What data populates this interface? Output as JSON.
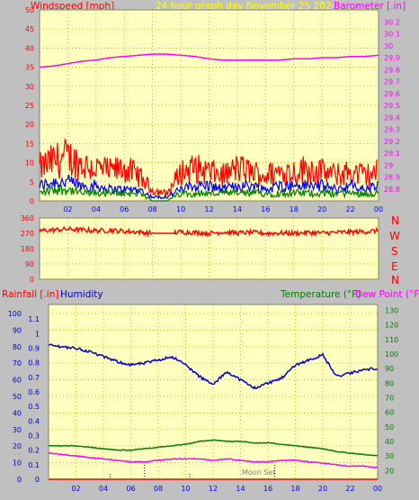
{
  "header": {
    "windspeed_label": "Windspeed [mph]",
    "center_title": "24 hour graph day   November 25 2024",
    "barometer_label": "Barometer [.in]"
  },
  "direction_labels": [
    "N",
    "W",
    "S",
    "E",
    "N"
  ],
  "lower_header": {
    "rainfall_label": "Rainfall [.in]",
    "humidity_label": "Humidity",
    "temperature_label": "Temperature (°F)",
    "dewpoint_label": "Dew Point (°F)"
  },
  "moon_label": "Moon Set",
  "colors": {
    "plot_bg": "#ffffc0",
    "frame_bg": "#c0c0c0",
    "wind": "#ff0000",
    "gust": "#0000ff",
    "avg": "#008000",
    "barometer": "#ff00ff",
    "humidity": "#0000cc",
    "temperature": "#008000",
    "dewpoint": "#ff00ff",
    "rain": "#ff0000",
    "title": "#ffff00",
    "grid": "#a0a000"
  },
  "chart_data": [
    {
      "type": "line",
      "title": "24 hour graph day   November 25 2024",
      "x_ticks": [
        "02",
        "04",
        "06",
        "08",
        "10",
        "12",
        "14",
        "16",
        "18",
        "20",
        "22",
        "00"
      ],
      "y_left_ticks": [
        0,
        5,
        10,
        15,
        20,
        25,
        30,
        35,
        40,
        45,
        50
      ],
      "y_left_label": "Windspeed [mph]",
      "y_left_range": [
        0,
        50
      ],
      "y_right_label": "Barometer [.in]",
      "y_right_range": [
        28.7,
        30.3
      ],
      "y_right_ticks": [
        "28.8",
        "28.9",
        "29",
        "29.1",
        "29.2",
        "29.3",
        "29.4",
        "29.5",
        "29.6",
        "29.7",
        "29.8",
        "29.9",
        "30",
        "30.1",
        "30.2"
      ],
      "series": [
        {
          "name": "Barometer",
          "axis": "right",
          "x": [
            0,
            1,
            2,
            3,
            4,
            5,
            6,
            7,
            8,
            9,
            10,
            11,
            12,
            13,
            14,
            15,
            16,
            17,
            18,
            19,
            20,
            21,
            22,
            23,
            24
          ],
          "values": [
            29.82,
            29.83,
            29.85,
            29.87,
            29.88,
            29.9,
            29.91,
            29.92,
            29.93,
            29.93,
            29.92,
            29.91,
            29.89,
            29.88,
            29.88,
            29.88,
            29.88,
            29.88,
            29.89,
            29.89,
            29.9,
            29.9,
            29.91,
            29.91,
            29.92
          ]
        },
        {
          "name": "Wind",
          "axis": "left",
          "x": [
            0,
            1,
            2,
            3,
            4,
            5,
            6,
            7,
            8,
            9,
            10,
            11,
            12,
            13,
            14,
            15,
            16,
            17,
            18,
            19,
            20,
            21,
            22,
            23,
            24
          ],
          "values": [
            9,
            11,
            12,
            10,
            9,
            8,
            9,
            7,
            3,
            2,
            8,
            9,
            8,
            7,
            9,
            8,
            7,
            8,
            8,
            9,
            8,
            7,
            8,
            7,
            8
          ]
        },
        {
          "name": "Gust",
          "axis": "left",
          "x": [
            0,
            1,
            2,
            3,
            4,
            5,
            6,
            7,
            8,
            9,
            10,
            11,
            12,
            13,
            14,
            15,
            16,
            17,
            18,
            19,
            20,
            21,
            22,
            23,
            24
          ],
          "values": [
            4,
            5,
            5,
            4,
            4,
            3,
            3,
            3,
            1,
            1,
            3,
            4,
            4,
            3,
            4,
            4,
            3,
            4,
            4,
            4,
            4,
            3,
            4,
            3,
            4
          ]
        },
        {
          "name": "Average",
          "axis": "left",
          "x": [
            0,
            1,
            2,
            3,
            4,
            5,
            6,
            7,
            8,
            9,
            10,
            11,
            12,
            13,
            14,
            15,
            16,
            17,
            18,
            19,
            20,
            21,
            22,
            23,
            24
          ],
          "values": [
            2,
            3,
            3,
            2,
            2,
            2,
            2,
            2,
            0,
            0,
            2,
            2,
            2,
            2,
            2,
            2,
            2,
            2,
            2,
            2,
            2,
            2,
            2,
            2,
            2
          ]
        }
      ],
      "grid": true
    },
    {
      "type": "line",
      "x_ticks": [
        "02",
        "04",
        "06",
        "08",
        "10",
        "12",
        "14",
        "16",
        "18",
        "20",
        "22",
        "00"
      ],
      "y_left_ticks": [
        0,
        90,
        180,
        270,
        360
      ],
      "y_left_range": [
        0,
        360
      ],
      "y_right_labels": [
        "N",
        "W",
        "S",
        "E",
        "N"
      ],
      "series": [
        {
          "name": "Direction",
          "x": [
            0,
            1,
            2,
            3,
            4,
            5,
            6,
            7,
            8,
            9,
            10,
            11,
            12,
            13,
            14,
            15,
            16,
            17,
            18,
            19,
            20,
            21,
            22,
            23,
            24
          ],
          "values": [
            285,
            290,
            295,
            290,
            285,
            288,
            282,
            278,
            270,
            270,
            278,
            275,
            270,
            278,
            272,
            275,
            270,
            272,
            270,
            275,
            272,
            275,
            278,
            280,
            285
          ]
        }
      ],
      "grid": true
    },
    {
      "type": "line",
      "x_ticks": [
        "02",
        "04",
        "06",
        "08",
        "10",
        "12",
        "14",
        "16",
        "18",
        "20",
        "22",
        "00"
      ],
      "y_rain_ticks": [
        "0",
        "0.1",
        "0.2",
        "0.3",
        "0.4",
        "0.5",
        "0.6",
        "0.7",
        "0.8",
        "0.9",
        "1",
        "1.1"
      ],
      "y_rain_label": "Rainfall [.in]",
      "y_rain_range": [
        0,
        1.2
      ],
      "y_humidity_ticks": [
        0,
        10,
        20,
        30,
        40,
        50,
        60,
        70,
        80,
        90,
        100
      ],
      "y_humidity_label": "Humidity",
      "y_humidity_range": [
        0,
        100
      ],
      "y_temp_ticks": [
        20,
        30,
        40,
        50,
        60,
        70,
        80,
        90,
        100,
        110,
        120,
        130
      ],
      "y_temp_label": "Temperature (°F)",
      "y_temp_range": [
        14,
        134
      ],
      "series": [
        {
          "name": "Humidity",
          "axis": "humidity",
          "x": [
            0,
            1,
            2,
            3,
            4,
            5,
            6,
            7,
            8,
            9,
            10,
            11,
            12,
            13,
            14,
            15,
            16,
            17,
            18,
            19,
            20,
            21,
            22,
            23,
            24
          ],
          "values": [
            81,
            80,
            79,
            77,
            74,
            71,
            69,
            70,
            72,
            74,
            69,
            62,
            57,
            65,
            60,
            55,
            58,
            61,
            69,
            72,
            75,
            62,
            64,
            66,
            67
          ]
        },
        {
          "name": "Temperature",
          "axis": "temp",
          "x": [
            0,
            1,
            2,
            3,
            4,
            5,
            6,
            7,
            8,
            9,
            10,
            11,
            12,
            13,
            14,
            15,
            16,
            17,
            18,
            19,
            20,
            21,
            22,
            23,
            24
          ],
          "values": [
            37,
            37,
            37,
            36,
            35,
            34,
            34,
            35,
            36,
            37,
            38,
            40,
            41,
            40,
            40,
            39,
            39,
            38,
            37,
            36,
            35,
            33,
            32,
            31,
            30
          ]
        },
        {
          "name": "Dew Point",
          "axis": "temp",
          "x": [
            0,
            1,
            2,
            3,
            4,
            5,
            6,
            7,
            8,
            9,
            10,
            11,
            12,
            13,
            14,
            15,
            16,
            17,
            18,
            19,
            20,
            21,
            22,
            23,
            24
          ],
          "values": [
            32,
            31,
            30,
            29,
            28,
            27,
            26,
            26,
            27,
            28,
            28,
            28,
            27,
            28,
            27,
            26,
            26,
            27,
            27,
            26,
            25,
            24,
            23,
            23,
            22
          ]
        },
        {
          "name": "Rainfall",
          "axis": "rain",
          "x": [
            0,
            24
          ],
          "values": [
            0,
            0
          ]
        }
      ],
      "annotations": [
        {
          "x": 4.5,
          "text": ""
        },
        {
          "x": 7.0,
          "text": ""
        },
        {
          "x": 10.3,
          "text": ""
        },
        {
          "x": 16.5,
          "text": "Moon Set"
        }
      ],
      "grid": true
    }
  ]
}
